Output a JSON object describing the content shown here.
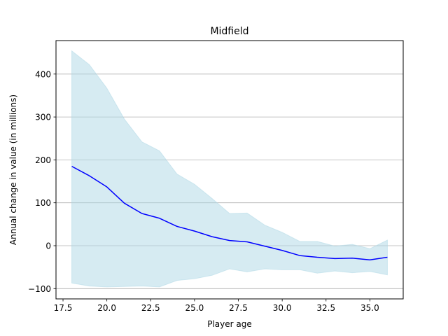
{
  "chart_data": {
    "type": "line",
    "title": "Midfield",
    "xlabel": "Player age",
    "ylabel": "Annual change in value (in millions)",
    "xlim": [
      17.1,
      36.9
    ],
    "ylim": [
      -124,
      478
    ],
    "xticks": [
      17.5,
      20.0,
      22.5,
      25.0,
      27.5,
      30.0,
      32.5,
      35.0
    ],
    "xtick_labels": [
      "17.5",
      "20.0",
      "22.5",
      "25.0",
      "27.5",
      "30.0",
      "32.5",
      "35.0"
    ],
    "yticks": [
      -100,
      0,
      100,
      200,
      300,
      400
    ],
    "ytick_labels": [
      "−100",
      "0",
      "100",
      "200",
      "300",
      "400"
    ],
    "grid": "horizontal",
    "legend": "none",
    "x": [
      18,
      19,
      20,
      21,
      22,
      23,
      24,
      25,
      26,
      27,
      28,
      29,
      30,
      31,
      32,
      33,
      34,
      35,
      36
    ],
    "series": [
      {
        "kind": "line",
        "color": "#0000ff",
        "values": [
          185,
          163,
          137,
          99,
          75,
          64,
          45,
          34,
          21,
          12,
          9,
          -1,
          -11,
          -23,
          -27,
          -30,
          -29,
          -33,
          -27
        ]
      },
      {
        "kind": "band",
        "color": "#add8e6",
        "opacity": 0.5,
        "upper": [
          454,
          422,
          367,
          295,
          242,
          221,
          167,
          143,
          110,
          75,
          76,
          48,
          31,
          10,
          10,
          -1,
          3,
          -7,
          13
        ],
        "lower": [
          -87,
          -94,
          -96,
          -95,
          -94,
          -96,
          -81,
          -77,
          -69,
          -54,
          -61,
          -54,
          -56,
          -56,
          -64,
          -59,
          -63,
          -60,
          -68
        ]
      }
    ]
  }
}
